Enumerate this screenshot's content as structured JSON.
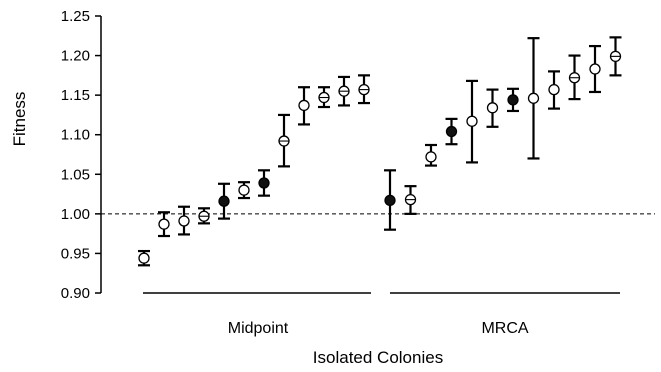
{
  "chart_data": {
    "type": "scatter",
    "title": "",
    "xlabel": "Isolated Colonies",
    "ylabel": "Fitness",
    "ylim": [
      0.9,
      1.25
    ],
    "yticks": [
      "0.90",
      "0.95",
      "1.00",
      "1.05",
      "1.10",
      "1.15",
      "1.20",
      "1.25"
    ],
    "reference_line": {
      "y": 1.0,
      "style": "dashed"
    },
    "grid": false,
    "colors": {
      "ink": "#000000",
      "open_fill": "#ffffff",
      "filled": "#111111"
    },
    "marker_styles": [
      "open",
      "filled",
      "crossed"
    ],
    "groups": [
      {
        "label": "Midpoint",
        "points": [
          {
            "y": 0.944,
            "lo": 0.935,
            "hi": 0.953,
            "marker": "open"
          },
          {
            "y": 0.987,
            "lo": 0.972,
            "hi": 1.002,
            "marker": "open"
          },
          {
            "y": 0.991,
            "lo": 0.974,
            "hi": 1.009,
            "marker": "open"
          },
          {
            "y": 0.997,
            "lo": 0.988,
            "hi": 1.007,
            "marker": "crossed"
          },
          {
            "y": 1.016,
            "lo": 0.994,
            "hi": 1.038,
            "marker": "filled"
          },
          {
            "y": 1.03,
            "lo": 1.02,
            "hi": 1.04,
            "marker": "open"
          },
          {
            "y": 1.039,
            "lo": 1.023,
            "hi": 1.055,
            "marker": "filled"
          },
          {
            "y": 1.092,
            "lo": 1.06,
            "hi": 1.125,
            "marker": "crossed"
          },
          {
            "y": 1.137,
            "lo": 1.113,
            "hi": 1.16,
            "marker": "open"
          },
          {
            "y": 1.147,
            "lo": 1.135,
            "hi": 1.16,
            "marker": "crossed"
          },
          {
            "y": 1.155,
            "lo": 1.137,
            "hi": 1.173,
            "marker": "crossed"
          },
          {
            "y": 1.157,
            "lo": 1.14,
            "hi": 1.175,
            "marker": "crossed"
          }
        ]
      },
      {
        "label": "MRCA",
        "points": [
          {
            "y": 1.017,
            "lo": 0.98,
            "hi": 1.055,
            "marker": "filled"
          },
          {
            "y": 1.018,
            "lo": 1.0,
            "hi": 1.035,
            "marker": "crossed"
          },
          {
            "y": 1.072,
            "lo": 1.061,
            "hi": 1.087,
            "marker": "open"
          },
          {
            "y": 1.104,
            "lo": 1.088,
            "hi": 1.12,
            "marker": "filled"
          },
          {
            "y": 1.117,
            "lo": 1.065,
            "hi": 1.168,
            "marker": "open"
          },
          {
            "y": 1.134,
            "lo": 1.11,
            "hi": 1.157,
            "marker": "open"
          },
          {
            "y": 1.144,
            "lo": 1.13,
            "hi": 1.158,
            "marker": "filled"
          },
          {
            "y": 1.146,
            "lo": 1.07,
            "hi": 1.222,
            "marker": "open"
          },
          {
            "y": 1.157,
            "lo": 1.133,
            "hi": 1.18,
            "marker": "open"
          },
          {
            "y": 1.172,
            "lo": 1.145,
            "hi": 1.2,
            "marker": "crossed"
          },
          {
            "y": 1.183,
            "lo": 1.154,
            "hi": 1.212,
            "marker": "open"
          },
          {
            "y": 1.199,
            "lo": 1.175,
            "hi": 1.223,
            "marker": "crossed"
          }
        ]
      }
    ]
  }
}
